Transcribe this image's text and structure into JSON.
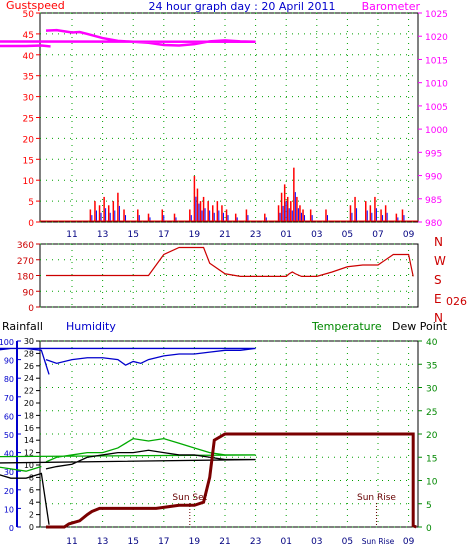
{
  "colors": {
    "gust": "#ff0000",
    "baro": "#ff00ff",
    "hum": "#0000cc",
    "temp": "#00aa00",
    "dew": "#660000",
    "rain": "#7a0000",
    "wind": "#cc0000",
    "axis_left": "#0000cc",
    "axis_right": "#008800",
    "grid": "#00a000"
  },
  "chart_data": [
    {
      "type": "line",
      "title": "24 hour graph day : 20 April 2011",
      "left_label": "Gustspeed",
      "right_label": "Barometer",
      "x_ticks": [
        "11",
        "13",
        "15",
        "17",
        "19",
        "21",
        "23",
        "01",
        "03",
        "05",
        "07",
        "09"
      ],
      "ylim_left": [
        0,
        50
      ],
      "left_ticks": [
        "0",
        "5",
        "10",
        "15",
        "20",
        "25",
        "30",
        "35",
        "40",
        "45",
        "50"
      ],
      "ylim_right": [
        980,
        1025
      ],
      "right_ticks": [
        "980",
        "985",
        "990",
        "995",
        "1000",
        "1005",
        "1010",
        "1015",
        "1020",
        "1025"
      ],
      "grid": true,
      "series": [
        {
          "name": "Barometer",
          "axis": "right",
          "x": [
            9.3,
            10,
            11,
            11.5,
            12,
            13,
            14,
            15,
            16,
            17,
            18,
            19,
            20,
            21,
            22,
            23,
            0,
            1,
            2,
            3,
            4,
            5,
            6,
            7,
            8,
            9,
            9.6
          ],
          "values": [
            1021.2,
            1021.3,
            1020.8,
            1020.9,
            1020.5,
            1019.6,
            1019.0,
            1018.8,
            1018.6,
            1018.1,
            1018.0,
            1018.3,
            1018.9,
            1019.1,
            1018.9,
            1018.8,
            1018.9,
            1018.7,
            1018.6,
            1018.4,
            1018.1,
            1018.0,
            1017.9,
            1017.9,
            1017.9,
            1018.0,
            1017.8
          ]
        },
        {
          "name": "Gustspeed",
          "axis": "left",
          "style": "spikes",
          "x": [
            12.2,
            12.5,
            12.8,
            13.1,
            13.4,
            13.7,
            14.0,
            14.4,
            15.3,
            16.0,
            16.9,
            17.7,
            18.7,
            19.0,
            19.2,
            19.4,
            19.6,
            19.9,
            20.2,
            20.5,
            20.8,
            21.1,
            21.7,
            22.4,
            23.6,
            24.5,
            24.7,
            24.9,
            25.1,
            25.3,
            25.5,
            25.7,
            25.9,
            26.1,
            26.6,
            27.6,
            29.2,
            29.5,
            30.2,
            30.5,
            30.8,
            31.2,
            31.5,
            32.2,
            32.6
          ],
          "values": [
            3,
            5,
            4,
            6,
            4,
            5,
            7,
            3,
            3,
            2,
            3,
            2,
            3,
            11,
            8,
            5,
            6,
            5,
            4,
            5,
            4,
            3,
            2,
            3,
            2,
            4,
            7,
            9,
            6,
            5,
            13,
            6,
            4,
            3,
            3,
            3,
            4,
            6,
            5,
            4,
            6,
            3,
            4,
            2,
            3
          ]
        }
      ]
    },
    {
      "type": "line",
      "series_label": "Wind direction",
      "ylim": [
        0,
        360
      ],
      "left_ticks": [
        "0",
        "90",
        "180",
        "270",
        "360"
      ],
      "compass": [
        "N",
        "W",
        "S",
        "E",
        "N"
      ],
      "current": "026°",
      "series": [
        {
          "name": "Wind direction",
          "x": [
            9.3,
            12,
            14,
            16,
            17,
            18,
            19,
            19.6,
            20,
            21,
            22,
            23,
            24,
            25,
            25.2,
            25.4,
            25.6,
            26,
            27,
            28,
            29,
            30,
            30.5,
            31,
            32,
            33,
            33.3
          ],
          "values": [
            180,
            180,
            180,
            180,
            300,
            340,
            340,
            340,
            250,
            190,
            175,
            175,
            175,
            175,
            190,
            200,
            190,
            175,
            175,
            200,
            230,
            240,
            240,
            240,
            300,
            300,
            175
          ]
        }
      ]
    },
    {
      "type": "line",
      "left_label_1": "Rainfall",
      "left_label_2": "Humidity",
      "right_label_1": "Temperature",
      "right_label_2": "Dew Point",
      "x_ticks": [
        "11",
        "13",
        "15",
        "17",
        "19",
        "21",
        "23",
        "01",
        "03",
        "05",
        "Sun Rise",
        "09"
      ],
      "hum_ticks": [
        "0",
        "10",
        "20",
        "30",
        "40",
        "50",
        "60",
        "70",
        "80",
        "90",
        "100"
      ],
      "rain_ticks": [
        "0",
        "2",
        "4",
        "6",
        "8",
        "10",
        "12",
        "14",
        "16",
        "18",
        "20",
        "22",
        "24",
        "26",
        "28",
        "30"
      ],
      "temp_ticks": [
        "0",
        "5",
        "10",
        "15",
        "20",
        "25",
        "30",
        "35",
        "40"
      ],
      "ylim_humidity": [
        0,
        100
      ],
      "ylim_temperature": [
        0,
        40
      ],
      "annotations": [
        {
          "text": "Sun Set",
          "x": 18.7
        },
        {
          "text": "Sun Rise",
          "x": 30.9
        }
      ],
      "series": [
        {
          "name": "Humidity",
          "axis": "humidity",
          "x": [
            9.3,
            10,
            11,
            12,
            13,
            14,
            14.5,
            15,
            15.5,
            16,
            17,
            18,
            19,
            20,
            21,
            22,
            23,
            0,
            1,
            2,
            3,
            4,
            5,
            6,
            7,
            8,
            9,
            9.5
          ],
          "values": [
            90,
            88,
            90,
            91,
            91,
            90,
            87,
            89,
            88,
            90,
            92,
            93,
            93,
            94,
            95,
            95,
            96,
            96,
            96,
            95,
            95,
            94,
            94,
            95,
            96,
            96,
            95,
            82
          ]
        },
        {
          "name": "Temperature",
          "axis": "temperature",
          "x": [
            9.3,
            10,
            11,
            12,
            13,
            14,
            15,
            16,
            17,
            18,
            19,
            20,
            21,
            22,
            23,
            0,
            1,
            2,
            3,
            4,
            5,
            6,
            7,
            8,
            9
          ],
          "values": [
            14,
            15,
            15.5,
            16,
            16,
            17,
            19,
            18.5,
            19,
            18,
            17,
            16,
            15.5,
            15.5,
            15.5,
            15,
            14.5,
            14,
            13.5,
            13.5,
            13,
            13,
            12.5,
            12,
            13
          ]
        },
        {
          "name": "Dew Point",
          "axis": "temperature",
          "x": [
            9.3,
            10,
            11,
            12,
            13,
            14,
            15,
            16,
            17,
            18,
            19,
            20,
            21,
            22,
            23,
            0,
            1,
            2,
            3,
            4,
            5,
            6,
            7,
            8,
            9,
            9.5
          ],
          "values": [
            12.5,
            13,
            13.5,
            15,
            15.5,
            16,
            16,
            16.5,
            16,
            15.5,
            15.5,
            15,
            14.5,
            14.5,
            14.5,
            13.5,
            12.5,
            12,
            12,
            11.5,
            11.5,
            11.5,
            10.5,
            10.5,
            11.5,
            0.5
          ]
        },
        {
          "name": "Rainfall",
          "axis": "rainfall",
          "x": [
            9.3,
            10.5,
            10.8,
            11.5,
            12,
            12.3,
            12.8,
            14,
            15.5,
            16,
            16.5,
            18,
            18.7,
            19,
            19.6,
            20.0,
            20.3,
            21,
            24,
            26,
            28,
            30,
            32,
            33.3,
            33.3,
            33.5
          ],
          "values": [
            0,
            0,
            0.5,
            1,
            2,
            2.5,
            3,
            3,
            3,
            3,
            3,
            3.5,
            3.5,
            3.5,
            4,
            8,
            14,
            15,
            15,
            15,
            15,
            15,
            15,
            15,
            0.2,
            0
          ]
        }
      ]
    }
  ]
}
